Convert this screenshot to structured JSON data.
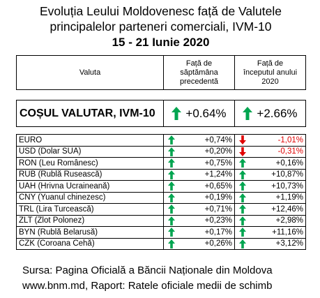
{
  "title": {
    "line1": "Evoluția Leului Moldovenesc față de Valutele",
    "line2": "principalelor parteneri comerciali,   IVM-10",
    "line3": "15 - 21 Iunie 2020"
  },
  "table": {
    "headers": {
      "currency": "Valuta",
      "week": [
        "Față de",
        "săptămâna",
        "precedentă"
      ],
      "year": [
        "Față de",
        "începutul anului",
        "2020"
      ]
    },
    "basket": {
      "name": "COȘUL VALUTAR, IVM-10",
      "week": "+0.64%",
      "year": "+2.66%",
      "week_dir": "up",
      "year_dir": "up"
    },
    "rows": [
      {
        "name": "EURO",
        "week": "+0,74%",
        "week_dir": "up",
        "year": "-1,01%",
        "year_dir": "down"
      },
      {
        "name": "USD (Dolar SUA)",
        "week": "+0,20%",
        "week_dir": "up",
        "year": "-0,31%",
        "year_dir": "down"
      },
      {
        "name": "RON (Leu Românesc)",
        "week": "+0,75%",
        "week_dir": "up",
        "year": "+0,16%",
        "year_dir": "up"
      },
      {
        "name": "RUB (Rublă Rusească)",
        "week": "+1,24%",
        "week_dir": "up",
        "year": "+10,87%",
        "year_dir": "up"
      },
      {
        "name": "UAH (Hrivna Ucraineană)",
        "week": "+0,65%",
        "week_dir": "up",
        "year": "+10,73%",
        "year_dir": "up"
      },
      {
        "name": "CNY (Yuanul chinezesc)",
        "week": "+0,19%",
        "week_dir": "up",
        "year": "+1,19%",
        "year_dir": "up"
      },
      {
        "name": "TRL (Lira Turcească)",
        "week": "+0,71%",
        "week_dir": "up",
        "year": "+12,46%",
        "year_dir": "up"
      },
      {
        "name": "ZLT (Zlot Polonez)",
        "week": "+0,23%",
        "week_dir": "up",
        "year": "+2,98%",
        "year_dir": "up"
      },
      {
        "name": "BYN (Rublă Belarusă)",
        "week": "+0,17%",
        "week_dir": "up",
        "year": "+11,16%",
        "year_dir": "up"
      },
      {
        "name": "CZK (Coroana Cehă)",
        "week": "+0,26%",
        "week_dir": "up",
        "year": "+3,12%",
        "year_dir": "up"
      }
    ]
  },
  "source": {
    "line1": "Sursa: Pagina Oficială a Băncii Naționale din Moldova",
    "line2": "www.bnm.md, Raport: Ratele oficiale medii de schimb"
  },
  "colors": {
    "up": "#00a550",
    "down": "#e00000",
    "negative_text": "#e00000"
  },
  "icons": {
    "up": "green-up-arrow-icon",
    "down": "red-down-arrow-icon"
  }
}
